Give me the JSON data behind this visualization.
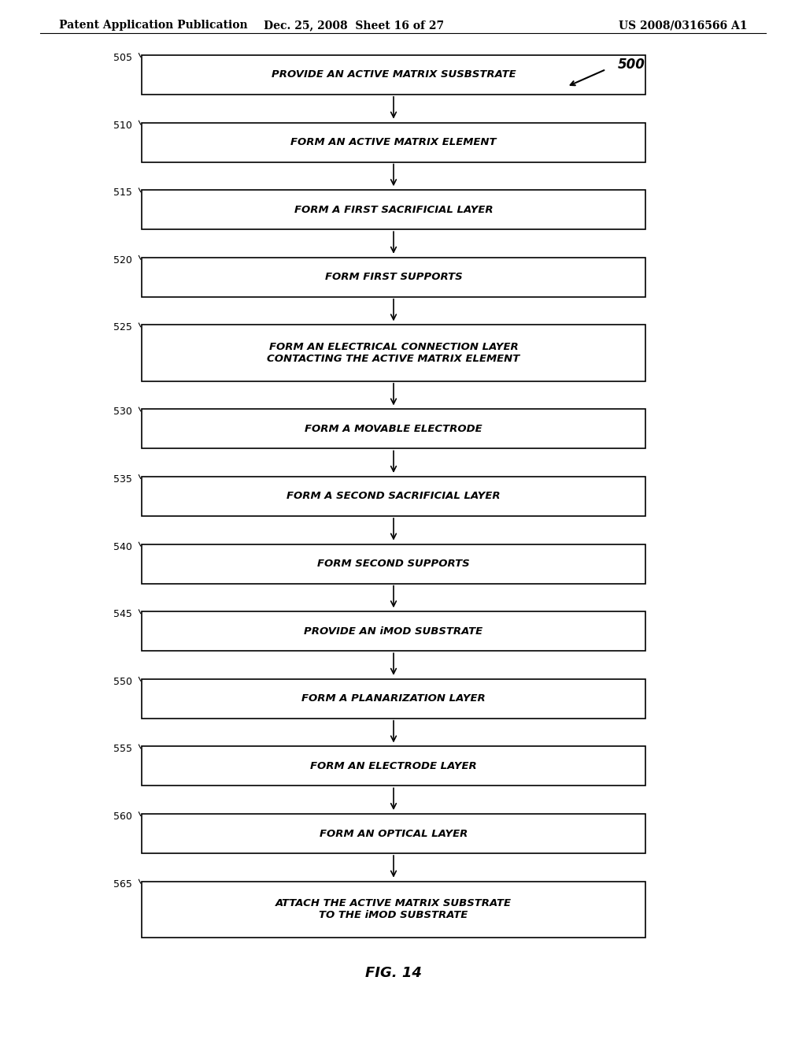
{
  "header_left": "Patent Application Publication",
  "header_mid": "Dec. 25, 2008  Sheet 16 of 27",
  "header_right": "US 2008/0316566 A1",
  "fig_label": "FIG. 14",
  "diagram_label": "500",
  "steps": [
    {
      "num": "505",
      "text": "PROVIDE AN ACTIVE MATRIX SUSBSTRATE",
      "lines": 1
    },
    {
      "num": "510",
      "text": "FORM AN ACTIVE MATRIX ELEMENT",
      "lines": 1
    },
    {
      "num": "515",
      "text": "FORM A FIRST SACRIFICIAL LAYER",
      "lines": 1
    },
    {
      "num": "520",
      "text": "FORM FIRST SUPPORTS",
      "lines": 1
    },
    {
      "num": "525",
      "text": "FORM AN ELECTRICAL CONNECTION LAYER\nCONTACTING THE ACTIVE MATRIX ELEMENT",
      "lines": 2
    },
    {
      "num": "530",
      "text": "FORM A MOVABLE ELECTRODE",
      "lines": 1
    },
    {
      "num": "535",
      "text": "FORM A SECOND SACRIFICIAL LAYER",
      "lines": 1
    },
    {
      "num": "540",
      "text": "FORM SECOND SUPPORTS",
      "lines": 1
    },
    {
      "num": "545",
      "text": "PROVIDE AN iMOD SUBSTRATE",
      "lines": 1
    },
    {
      "num": "550",
      "text": "FORM A PLANARIZATION LAYER",
      "lines": 1
    },
    {
      "num": "555",
      "text": "FORM AN ELECTRODE LAYER",
      "lines": 1
    },
    {
      "num": "560",
      "text": "FORM AN OPTICAL LAYER",
      "lines": 1
    },
    {
      "num": "565",
      "text": "ATTACH THE ACTIVE MATRIX SUBSTRATE\nTO THE iMOD SUBSTRATE",
      "lines": 2
    }
  ],
  "bg_color": "#ffffff",
  "box_edge_color": "#000000",
  "text_color": "#000000",
  "arrow_color": "#000000"
}
